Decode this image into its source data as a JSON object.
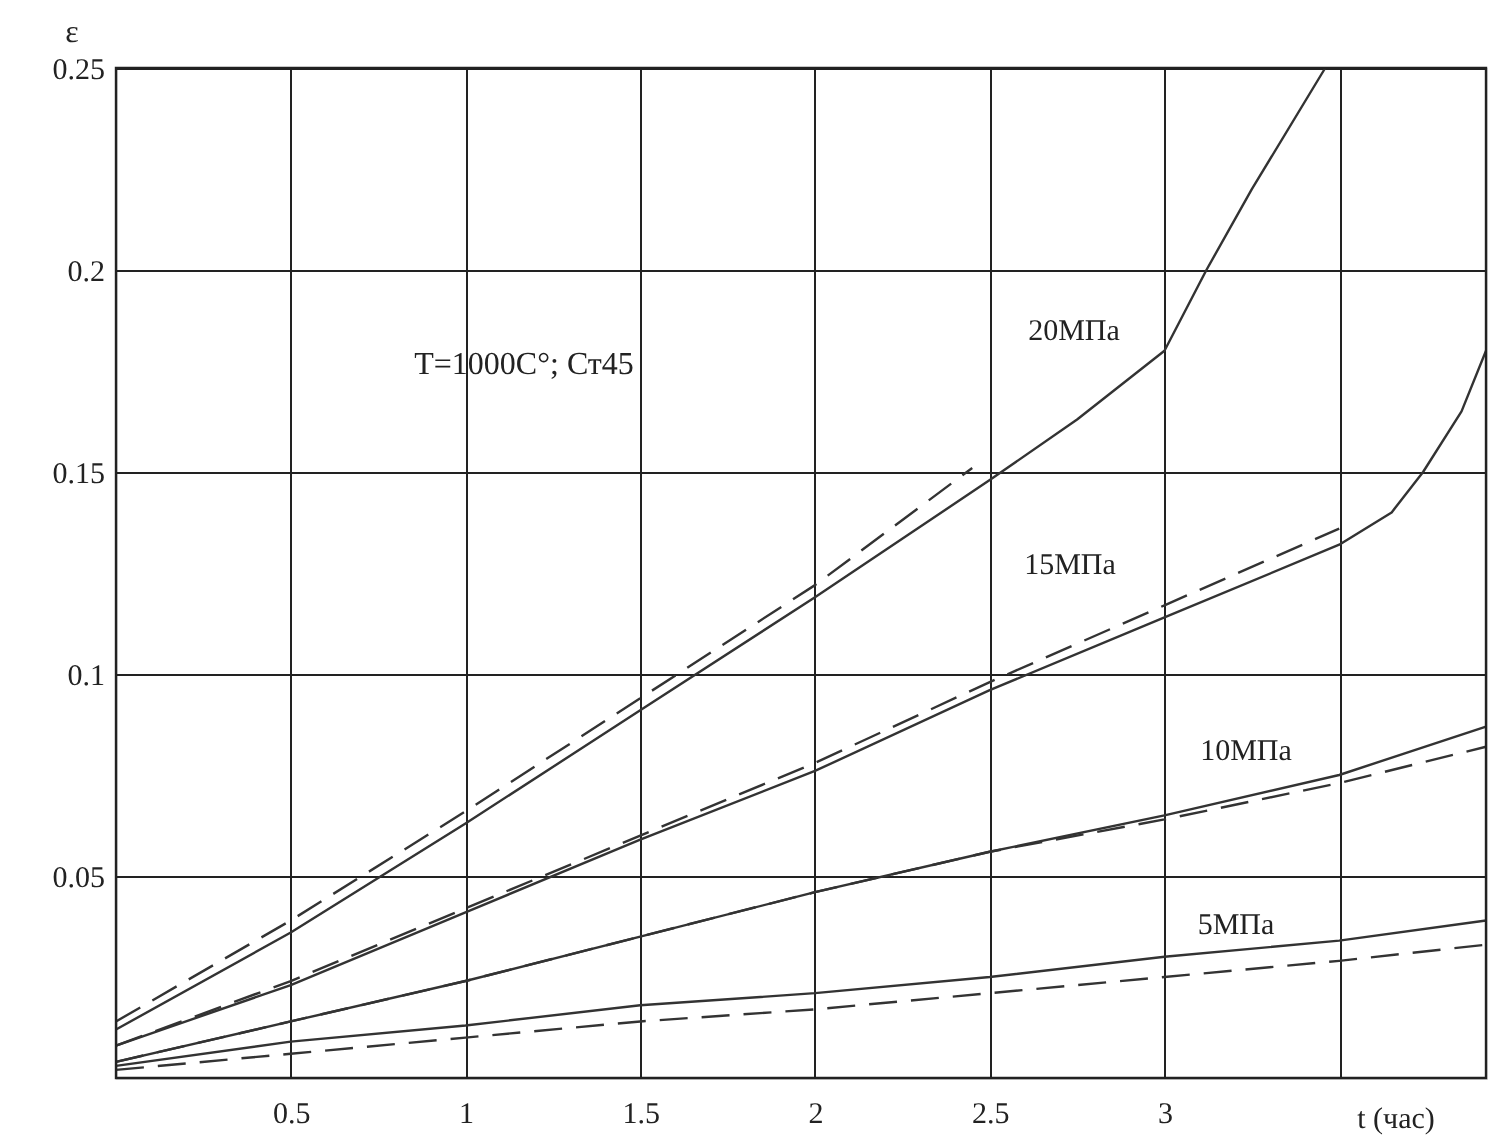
{
  "chart_data": {
    "type": "line",
    "xlabel": "t (час)",
    "ylabel": "ε",
    "xlim": [
      0,
      3.92
    ],
    "ylim": [
      0,
      0.25
    ],
    "xticks": [
      0.5,
      1,
      1.5,
      2,
      2.5,
      3,
      {
        "value": 3.5,
        "label": null
      }
    ],
    "yticks": [
      0.05,
      0.1,
      0.15,
      0.2,
      0.25
    ],
    "grid": true,
    "marker": "none",
    "series": [
      {
        "color": "#333333",
        "line_style": "solid",
        "x": [
          0,
          0.5,
          1,
          1.5,
          2,
          2.5,
          2.75,
          3,
          3.12,
          3.25,
          3.46
        ],
        "values": [
          0.012,
          0.036,
          0.063,
          0.091,
          0.119,
          0.148,
          0.163,
          0.18,
          0.2,
          0.22,
          0.25
        ]
      },
      {
        "color": "#333333",
        "line_style": "dashed",
        "x": [
          0,
          0.5,
          1,
          1.5,
          2,
          2.45
        ],
        "values": [
          0.014,
          0.039,
          0.066,
          0.094,
          0.122,
          0.151
        ]
      },
      {
        "color": "#333333",
        "line_style": "solid",
        "x": [
          0,
          0.5,
          1,
          1.5,
          2,
          2.5,
          3,
          3.5,
          3.65,
          3.74,
          3.85,
          3.92
        ],
        "values": [
          0.008,
          0.023,
          0.041,
          0.059,
          0.076,
          0.096,
          0.114,
          0.132,
          0.14,
          0.15,
          0.165,
          0.18
        ]
      },
      {
        "color": "#333333",
        "line_style": "dashed",
        "x": [
          0,
          0.5,
          1,
          1.5,
          2,
          2.5,
          3,
          3.5
        ],
        "values": [
          0.008,
          0.024,
          0.042,
          0.06,
          0.078,
          0.098,
          0.117,
          0.136
        ]
      },
      {
        "color": "#333333",
        "line_style": "solid",
        "x": [
          0,
          0.5,
          1,
          1.5,
          2,
          2.5,
          3,
          3.5,
          3.92
        ],
        "values": [
          0.004,
          0.014,
          0.024,
          0.035,
          0.046,
          0.056,
          0.065,
          0.075,
          0.087
        ]
      },
      {
        "color": "#333333",
        "line_style": "dashed",
        "x": [
          0,
          0.5,
          1,
          1.5,
          2,
          2.5,
          3,
          3.5,
          3.92
        ],
        "values": [
          0.004,
          0.014,
          0.024,
          0.035,
          0.046,
          0.056,
          0.064,
          0.073,
          0.082
        ]
      },
      {
        "color": "#333333",
        "line_style": "solid",
        "x": [
          0,
          0.5,
          1,
          1.5,
          2,
          2.5,
          3,
          3.5,
          3.92
        ],
        "values": [
          0.003,
          0.009,
          0.013,
          0.018,
          0.021,
          0.025,
          0.03,
          0.034,
          0.039
        ]
      },
      {
        "color": "#333333",
        "line_style": "dashed",
        "x": [
          0,
          0.5,
          1,
          1.5,
          2,
          2.5,
          3,
          3.5,
          3.92
        ],
        "values": [
          0.002,
          0.006,
          0.01,
          0.014,
          0.017,
          0.021,
          0.025,
          0.029,
          0.033
        ]
      }
    ],
    "annotations": [
      "T=1000C°; Ст45",
      "20МПа",
      "15МПа",
      "10МПа",
      "5МПа"
    ]
  }
}
